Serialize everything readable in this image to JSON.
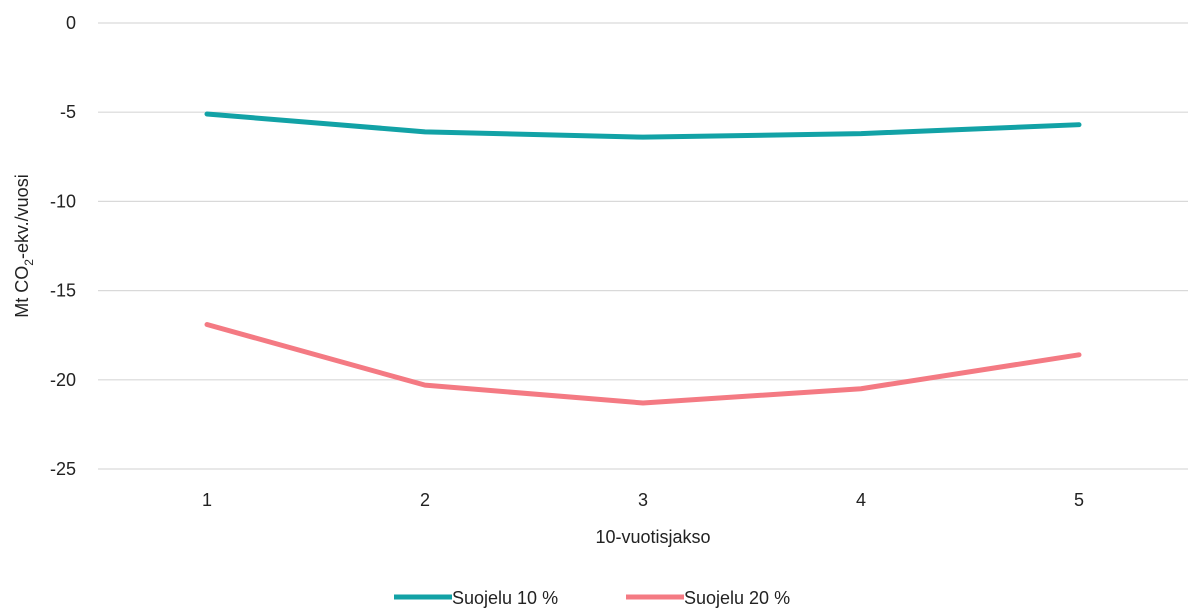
{
  "chart_data": {
    "type": "line",
    "xlabel": "10-vuotisjakso",
    "ylabel": {
      "prefix": "Mt CO",
      "subscript": "2",
      "suffix": "-ekv./vuosi"
    },
    "categories": [
      "1",
      "2",
      "3",
      "4",
      "5"
    ],
    "ylim": [
      -25,
      0
    ],
    "yticks": [
      "0",
      "-5",
      "-10",
      "-15",
      "-20",
      "-25"
    ],
    "ytick_values": [
      0,
      -5,
      -10,
      -15,
      -20,
      -25
    ],
    "grid": true,
    "legend_position": "bottom",
    "series": [
      {
        "name": "Suojelu 10 %",
        "color": "#12a2a6",
        "values": [
          -5.1,
          -6.1,
          -6.4,
          -6.2,
          -5.7
        ]
      },
      {
        "name": "Suojelu 20 %",
        "color": "#f47a83",
        "values": [
          -16.9,
          -20.3,
          -21.3,
          -20.5,
          -18.6
        ]
      }
    ]
  }
}
